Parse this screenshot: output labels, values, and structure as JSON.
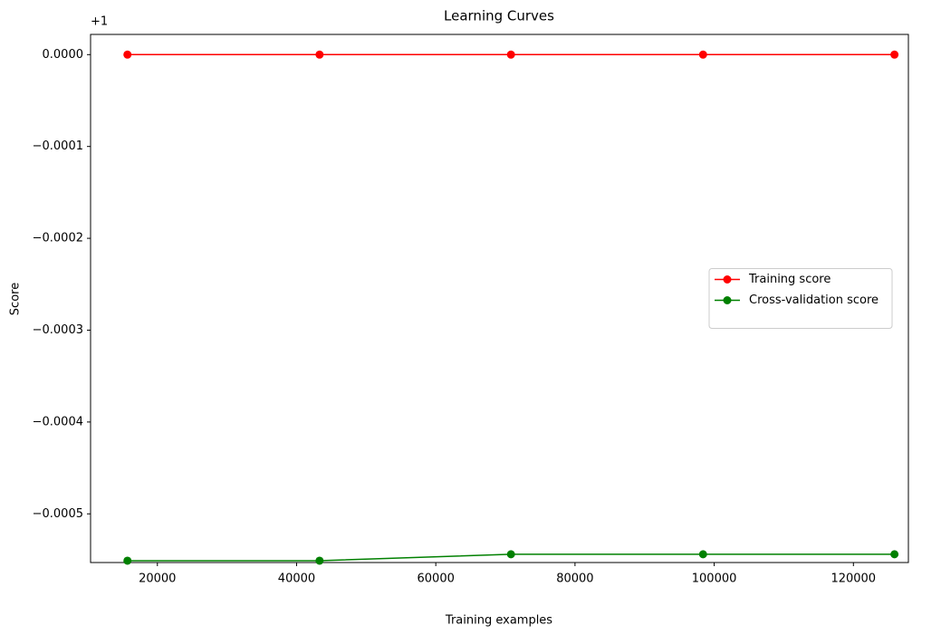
{
  "chart_data": {
    "type": "line",
    "title": "Learning Curves",
    "x_label": "Training examples",
    "y_label": "Score",
    "y_offset_text": "+1",
    "x": [
      15700,
      43300,
      70800,
      98400,
      125900
    ],
    "series": [
      {
        "name": "Training score",
        "color": "#ff0000",
        "values": [
          0,
          0,
          0,
          0,
          0
        ]
      },
      {
        "name": "Cross-validation score",
        "color": "#008000",
        "values": [
          -0.000551,
          -0.000551,
          -0.000544,
          -0.000544,
          -0.000544
        ]
      }
    ],
    "xlim": [
      10400,
      127900
    ],
    "xticks": [
      20000,
      40000,
      60000,
      80000,
      100000,
      120000
    ],
    "ylim": [
      -0.000553,
      2.2e-05
    ],
    "yticks": [
      {
        "value": 0,
        "label": "0.0000"
      },
      {
        "value": -0.0001,
        "label": "−0.0001"
      },
      {
        "value": -0.0002,
        "label": "−0.0002"
      },
      {
        "value": -0.0003,
        "label": "−0.0003"
      },
      {
        "value": -0.0004,
        "label": "−0.0004"
      },
      {
        "value": -0.0005,
        "label": "−0.0005"
      }
    ],
    "legend": "center right",
    "grid": false
  }
}
